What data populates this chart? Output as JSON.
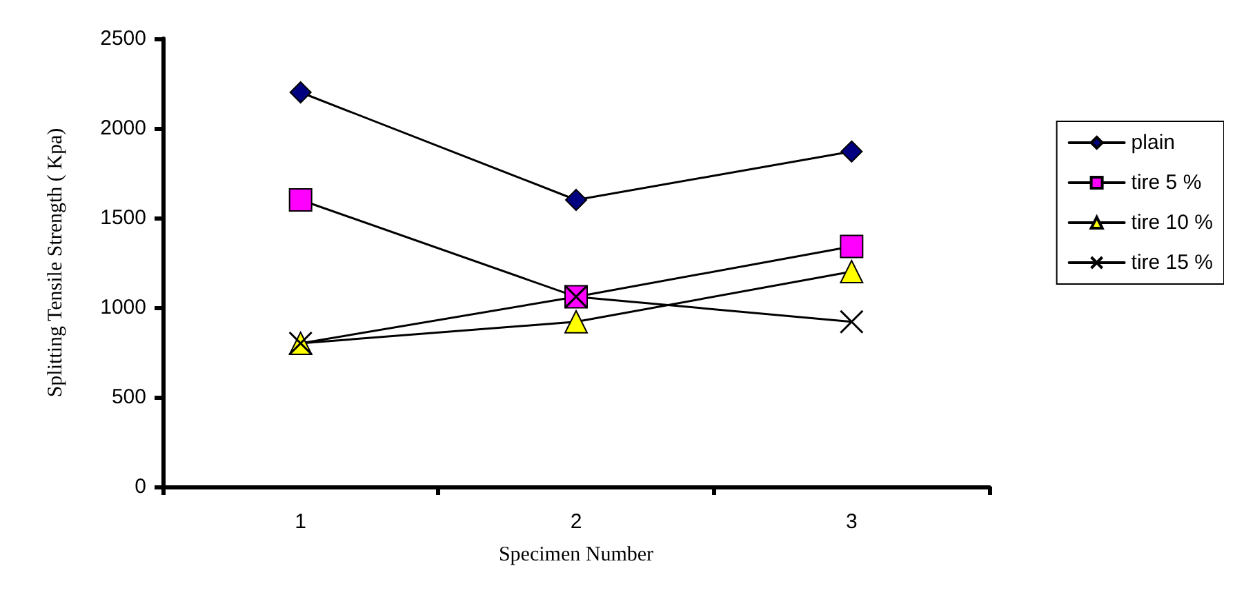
{
  "chart_data": {
    "type": "line",
    "xlabel": "Specimen Number",
    "ylabel": "Splitting Tensile Strength ( Kpa)",
    "categories": [
      "1",
      "2",
      "3"
    ],
    "series": [
      {
        "name": "plain",
        "color": "#000080",
        "marker": "diamond",
        "values": [
          2200,
          1600,
          1870
        ]
      },
      {
        "name": "tire 5 %",
        "color": "#ff00ff",
        "marker": "square",
        "values": [
          1600,
          1060,
          1340
        ]
      },
      {
        "name": "tire 10 %",
        "color": "#ffff00",
        "marker": "triangle",
        "values": [
          800,
          920,
          1200
        ]
      },
      {
        "name": "tire 15 %",
        "color": "#000000",
        "marker": "cross",
        "values": [
          800,
          1060,
          920
        ]
      }
    ],
    "ylim": [
      0,
      2500
    ],
    "yticks": [
      0,
      500,
      1000,
      1500,
      2000,
      2500
    ],
    "grid": false,
    "legend": "right",
    "line_style": "solid"
  }
}
